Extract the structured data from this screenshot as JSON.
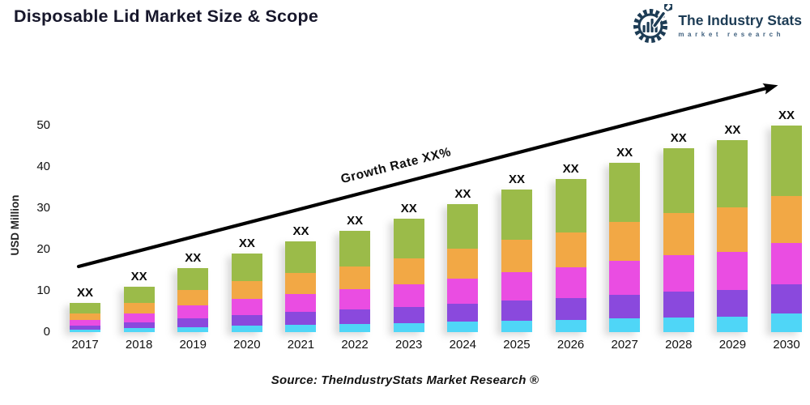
{
  "header": {
    "title": "Disposable Lid Market Size & Scope",
    "logo": {
      "name": "The Industry Stats",
      "tagline": "market research",
      "color": "#1d3c55"
    }
  },
  "footer": {
    "source": "Source: TheIndustryStats Market Research ®"
  },
  "chart_data": {
    "type": "bar",
    "stacked": true,
    "title": "Disposable Lid Market Size & Scope",
    "xlabel": "",
    "ylabel": "USD Million",
    "ylim": [
      0,
      50
    ],
    "yticks": [
      0,
      10,
      20,
      30,
      40,
      50
    ],
    "grid": false,
    "legend": "none",
    "categories": [
      "2017",
      "2018",
      "2019",
      "2020",
      "2021",
      "2022",
      "2023",
      "2024",
      "2025",
      "2026",
      "2027",
      "2028",
      "2029",
      "2030"
    ],
    "bar_value_label": "XX",
    "totals": [
      7,
      11,
      15.5,
      19,
      22,
      24.5,
      27.5,
      31,
      34.5,
      37,
      41,
      44.5,
      46.5,
      50
    ],
    "series": [
      {
        "name": "segment-cyan-bottom",
        "color": "#4FD6F7",
        "values": [
          0.6,
          0.9,
          1.2,
          1.5,
          1.8,
          2.0,
          2.2,
          2.5,
          2.8,
          3.0,
          3.3,
          3.6,
          3.7,
          4.5
        ]
      },
      {
        "name": "segment-purple",
        "color": "#8A49DD",
        "values": [
          1.0,
          1.5,
          2.2,
          2.7,
          3.1,
          3.4,
          3.9,
          4.3,
          4.8,
          5.2,
          5.7,
          6.2,
          6.5,
          7.0
        ]
      },
      {
        "name": "segment-magenta",
        "color": "#EA4DE2",
        "values": [
          1.4,
          2.2,
          3.1,
          3.8,
          4.4,
          4.9,
          5.5,
          6.2,
          6.9,
          7.4,
          8.2,
          8.9,
          9.3,
          10.0
        ]
      },
      {
        "name": "segment-orange",
        "color": "#F2A845",
        "values": [
          1.6,
          2.5,
          3.6,
          4.4,
          5.1,
          5.6,
          6.3,
          7.1,
          7.9,
          8.5,
          9.4,
          10.2,
          10.7,
          11.5
        ]
      },
      {
        "name": "segment-green-top",
        "color": "#9BBB49",
        "values": [
          2.4,
          3.9,
          5.4,
          6.6,
          7.6,
          8.6,
          9.6,
          10.9,
          12.1,
          12.9,
          14.4,
          15.6,
          16.3,
          17.0
        ]
      }
    ],
    "annotation": {
      "text": "Growth Rate XX%"
    }
  }
}
